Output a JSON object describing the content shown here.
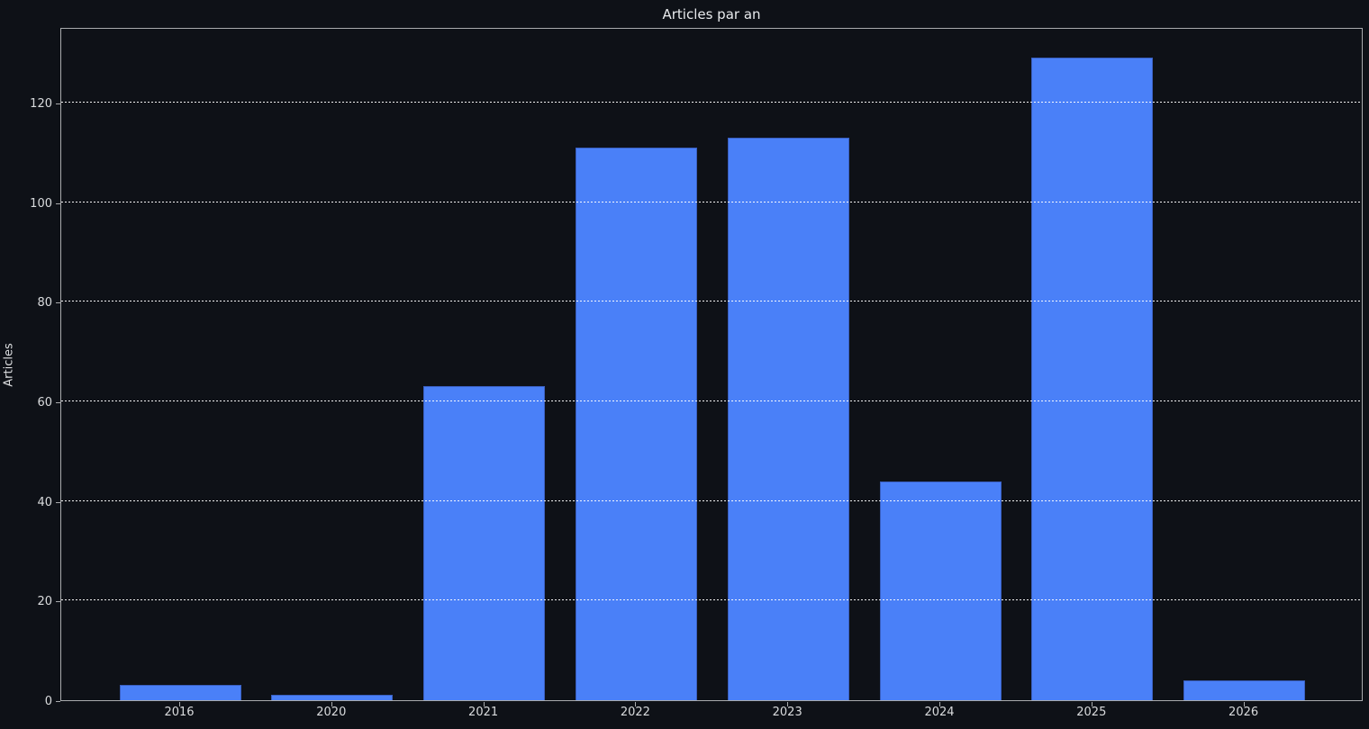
{
  "title": "Articles par an",
  "ylabel": "Articles",
  "chart_data": {
    "type": "bar",
    "title": "Articles par an",
    "xlabel": "",
    "ylabel": "Articles",
    "categories": [
      "2016",
      "2020",
      "2021",
      "2022",
      "2023",
      "2024",
      "2025",
      "2026"
    ],
    "values": [
      3,
      1,
      63,
      111,
      113,
      44,
      129,
      4
    ],
    "yticks": [
      0,
      20,
      40,
      60,
      80,
      100,
      120
    ],
    "ylim": [
      0,
      135.2
    ],
    "grid": "horizontal dotted, drawn above bars",
    "legend_position": "none",
    "bar_color": "#4a80f8",
    "bar_edge_color": "#3a5fc0",
    "background_color": "#0e1117",
    "spine_color": "#a9abad",
    "text_color": "#d9dbdd",
    "gridline_color": "#ffffff"
  }
}
